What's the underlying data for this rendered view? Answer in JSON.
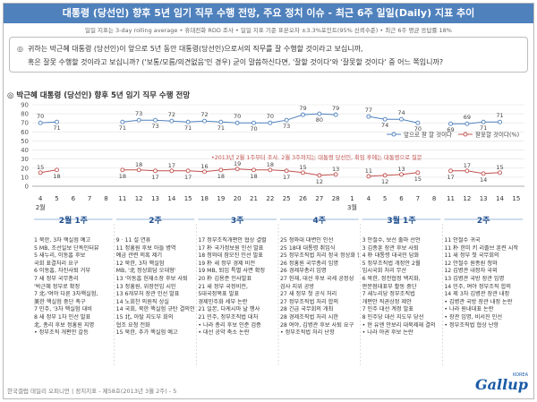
{
  "header": {
    "title": "대통령 (당선인) 향후 5년 임기 직무 수행 전망, 주요 정치 이슈 - 최근 6주 일일(Daily) 지표 추이",
    "subtitle": "일일 지표는 3-day rolling average • 휴대전화 RDD 조사 • 일일 지표 기준 표본오차 ±3.3%포인트(95% 신뢰수준) • 최근 6주 평균 응답률 18%"
  },
  "question": {
    "line1": "귀하는 박근혜 대통령 (당선인)이 앞으로 5년 동안 대통령(당선인)으로서의 직무를 잘 수행할 것이라고 보십니까,",
    "line2": "혹은 잘못 수행할 것이라고 보십니까? ('보통/모름/의견없음'인 경우) 굳이 말씀하신다면, '잘할 것이다'와 '잘못할 것이다' 중 어느 쪽입니까?"
  },
  "chart_title": "박근혜 대통령 (당선인) 향후 5년 임기 직무 수행 전망",
  "chart_data": {
    "type": "line",
    "ylim": [
      0,
      90
    ],
    "yticks": [
      0,
      10,
      20,
      30,
      40,
      50,
      60,
      70,
      80,
      90
    ],
    "grid": true,
    "legend": "right",
    "annotation": "•2013년 2월 1주부터 조사. 2월 3주까지는 대통령 당선인, 취임 후에는 대통령으로 질문",
    "categories": [
      "4일",
      "5일",
      "6일",
      "7일",
      "8일",
      "11일",
      "12일",
      "13일",
      "14일",
      "15일",
      "18일",
      "19일",
      "20일",
      "21일",
      "22일",
      "25일",
      "26일",
      "27일",
      "28일",
      "1일",
      "4일",
      "5일",
      "6일",
      "7일",
      "8일",
      "11일",
      "12일",
      "13일",
      "14일",
      "15일"
    ],
    "x_display": [
      "4",
      "5",
      "6",
      "7",
      "8",
      "11",
      "12",
      "13",
      "14",
      "15",
      "18",
      "19",
      "20",
      "21",
      "22",
      "25",
      "26",
      "27",
      "28",
      "1",
      "4",
      "5",
      "6",
      "7",
      "8",
      "11",
      "12",
      "13",
      "14",
      "15"
    ],
    "month_labels": [
      {
        "index": 0,
        "text": "2월"
      },
      {
        "index": 19,
        "text": "3월"
      }
    ],
    "series": [
      {
        "name": "앞으로 잘 할 것이다",
        "color": "#4f81bd",
        "values": [
          70,
          71,
          null,
          null,
          null,
          71,
          73,
          73,
          72,
          71,
          72,
          71,
          70,
          70,
          70,
          73,
          79,
          80,
          79,
          null,
          77,
          74,
          74,
          70,
          null,
          69,
          69,
          71,
          71,
          null
        ],
        "labels": [
          "70",
          "71",
          "",
          "",
          "",
          "71",
          "73",
          "73",
          "72",
          "71",
          "72",
          "71",
          "70",
          "70",
          "70",
          "73",
          "79",
          "80",
          "79",
          "",
          "77",
          "74",
          "74",
          "70",
          "",
          "69",
          "69",
          "71",
          "71",
          ""
        ]
      },
      {
        "name": "잘못할 것이다(%)",
        "color": "#c0504d",
        "values": [
          15,
          18,
          null,
          null,
          null,
          18,
          18,
          17,
          17,
          17,
          16,
          18,
          19,
          18,
          18,
          17,
          15,
          12,
          13,
          null,
          11,
          12,
          13,
          15,
          null,
          17,
          17,
          14,
          15,
          null
        ],
        "labels": [
          "15",
          "18",
          "",
          "",
          "",
          "18",
          "18",
          "17",
          "17",
          "17",
          "16",
          "18",
          "19",
          "18",
          "18",
          "17",
          "15",
          "12",
          "13",
          "",
          "11",
          "12",
          "13",
          "15",
          "",
          "17",
          "17",
          "14",
          "15",
          ""
        ]
      }
    ]
  },
  "weeks": [
    {
      "label": "2월 1주",
      "notes": [
        "1 북한, 3차 핵실험 예고",
        "5 MB, 조선일보 단독인터뷰",
        "5 새누리, 이동흡 후보",
        "  국회 표결처리 요구",
        "6 이동흡, 자진사퇴 거부",
        "7 새 정부 국무총리",
        "  '박근혜 정부로 확정",
        "7 北-'여야 다른 3차핵실험,",
        "  美한 핵실험 중단 촉구",
        "7 민주, '3차 핵실험 대비 ",
        "8 새 정부 1차 인선 발표",
        "  北, 총리 후보 정홍원 지명",
        "• 정부조직 개편안 갈등"
      ]
    },
    {
      "label": "2주",
      "notes": [
        "9 · 11 설 연휴",
        "11 정홍원 후보 아들 병역",
        "  예금 관련 의혹 제기",
        "12 북한, 3차 핵실험",
        "  MB, '北 정상회담 오대형'",
        "13 '이동흡 헌재소장 후보 사퇴",
        "13 정홍원, 위장전입 시인",
        "13 6개부처 장관 인선 발표",
        "14 노회찬 의원직 상실",
        "14 국회, 북한 핵실험 규탄 결의안 채택",
        "15 北, 아탈 지도부 회의",
        "  협조 요청 전화",
        "15 북한, 추가 핵실험 예고"
      ]
    },
    {
      "label": "3주",
      "notes": [
        "17 정부조직개편안 협상 결렬",
        "17 朴 국가정보원 인선 발표",
        "18 청와대 참모진 인선 발표",
        "19 朴 새 정부 경제 비전",
        "19 MB, 퇴임 특별 사면 확정",
        "20 朴 김용준 인사발표",
        "21 새 정부 국정비전,",
        "  5대국정목표 발표",
        "  경제민주화 세부 논란",
        "21 일본, 다케시마 날 행사",
        "21 민주, 정부조직법 대처",
        "• 나라 총리 후보 인준 검증",
        "• 대선 공약 축소 논란"
      ]
    },
    {
      "label": "4주",
      "notes": [
        "25 청와대 대변인 인선",
        "25 18대 대통령 취임식",
        "25 정부조직법 처리 정국 정상화 합의",
        "26 정홍원 국무총리 임명",
        "26 경제부총리 임명",
        "27 헌재, 대선 후보 국세 공정성",
        "  검사 지위 공방",
        "27 새 정부 첫 공식 처리",
        "27 정부조직법 처리 합의",
        "28 긴급 국무회의 개최",
        "28 경제조직법 처리 시한",
        "28 여야, 김병관 후보 사퇴 요구",
        "• 정부조직법 처리 난항"
      ]
    },
    {
      "label": "3월 1주",
      "notes": [
        "3 안철수, 보선 출마 선언",
        "3 김종훈 장관 후보 사퇴",
        "4 朴 대통령 대국민 담화",
        "5 정부조직법 개정안 2월",
        "  임시국회 처리 무산",
        "6 북한, 정전협정 백지화,",
        "  판문점대표부 활동 중단",
        "7 새누리당 정부조직법",
        "  개편안 직권상정 제안",
        "7 민주 대선 계정 발표",
        "8 민주당 대선 지도부 당선",
        "• 현 유엔 안보리 대북제재 결의",
        "• 나라 야권 후보 논란"
      ]
    },
    {
      "label": "2주",
      "notes": [
        "11 안철수 귀국",
        "11 朴 한미 키 리졸브 훈련 시작",
        "11 새 정부 첫 국무회의",
        "12 안철수 원종원 청와",
        "12 김병관 내정자 국외",
        "13 김병관 국방 장관 임명",
        "14 민주, 여야 정부조직 합의",
        "14 제 3차 김병관 장관 내정",
        "• 김병관 국방 장관 내정 논란",
        "• 나라 원내대표 논란",
        "• 장관 임명, 비서진 인선",
        "• 정부조직법 협상 난항"
      ]
    }
  ],
  "footer": {
    "text": "한국갤럽 데일리 오피니언 | 정치지표 - 제58호(2013년 3월 2주) - 5",
    "logo": "Gallup",
    "logo_sub": "KOREA"
  }
}
